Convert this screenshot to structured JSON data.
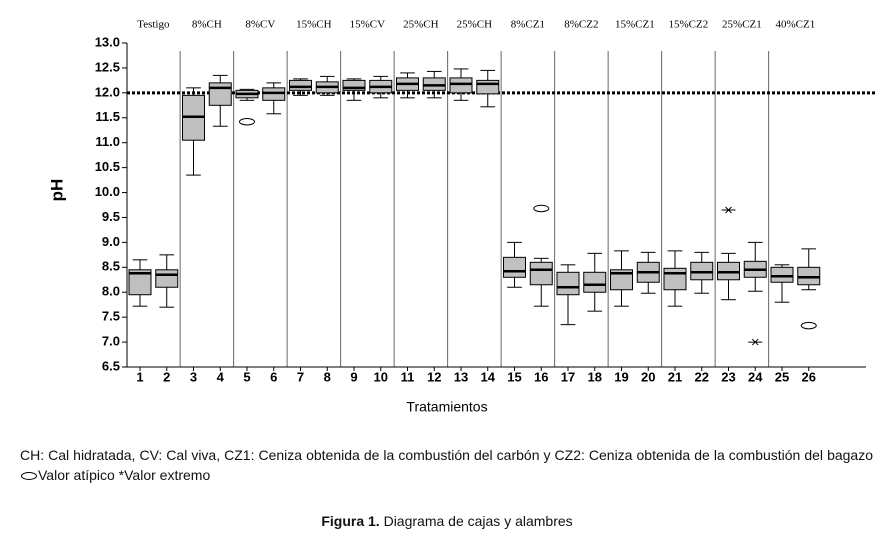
{
  "chart_data": {
    "type": "box",
    "y_label": "pH",
    "x_label": "Tratamientos",
    "categories": [
      "1",
      "2",
      "3",
      "4",
      "5",
      "6",
      "7",
      "8",
      "9",
      "10",
      "11",
      "12",
      "13",
      "14",
      "15",
      "16",
      "17",
      "18",
      "19",
      "20",
      "21",
      "22",
      "23",
      "24",
      "25",
      "26"
    ],
    "groups": [
      {
        "label": "Testigo",
        "categories": [
          "1",
          "2"
        ]
      },
      {
        "label": "8%CH",
        "categories": [
          "3",
          "4"
        ]
      },
      {
        "label": "8%CV",
        "categories": [
          "5",
          "6"
        ]
      },
      {
        "label": "15%CH",
        "categories": [
          "7",
          "8"
        ]
      },
      {
        "label": "15%CV",
        "categories": [
          "9",
          "10"
        ]
      },
      {
        "label": "25%CH",
        "categories": [
          "11",
          "12"
        ]
      },
      {
        "label": "25%CH",
        "categories": [
          "13",
          "14"
        ]
      },
      {
        "label": "8%CZ1",
        "categories": [
          "15",
          "16"
        ]
      },
      {
        "label": "8%CZ2",
        "categories": [
          "17",
          "18"
        ]
      },
      {
        "label": "15%CZ1",
        "categories": [
          "19",
          "20"
        ]
      },
      {
        "label": "15%CZ2",
        "categories": [
          "21",
          "22"
        ]
      },
      {
        "label": "25%CZ1",
        "categories": [
          "23",
          "24"
        ]
      },
      {
        "label": "40%CZ1",
        "categories": [
          "25",
          "26"
        ]
      }
    ],
    "boxes": [
      {
        "min": 7.72,
        "q1": 7.95,
        "median": 8.38,
        "q3": 8.45,
        "max": 8.65,
        "outliers": [],
        "extremes": []
      },
      {
        "min": 7.7,
        "q1": 8.1,
        "median": 8.35,
        "q3": 8.45,
        "max": 8.75,
        "outliers": [],
        "extremes": []
      },
      {
        "min": 10.35,
        "q1": 11.05,
        "median": 11.52,
        "q3": 11.95,
        "max": 12.1,
        "outliers": [],
        "extremes": []
      },
      {
        "min": 11.33,
        "q1": 11.75,
        "median": 12.1,
        "q3": 12.2,
        "max": 12.35,
        "outliers": [],
        "extremes": []
      },
      {
        "min": 11.85,
        "q1": 11.9,
        "median": 11.98,
        "q3": 12.05,
        "max": 12.07,
        "outliers": [
          11.42
        ],
        "extremes": []
      },
      {
        "min": 11.58,
        "q1": 11.85,
        "median": 12.0,
        "q3": 12.1,
        "max": 12.2,
        "outliers": [],
        "extremes": []
      },
      {
        "min": 11.95,
        "q1": 12.05,
        "median": 12.12,
        "q3": 12.25,
        "max": 12.28,
        "outliers": [],
        "extremes": []
      },
      {
        "min": 11.95,
        "q1": 12.0,
        "median": 12.12,
        "q3": 12.22,
        "max": 12.33,
        "outliers": [],
        "extremes": []
      },
      {
        "min": 11.85,
        "q1": 12.05,
        "median": 12.1,
        "q3": 12.25,
        "max": 12.28,
        "outliers": [],
        "extremes": []
      },
      {
        "min": 11.9,
        "q1": 12.0,
        "median": 12.12,
        "q3": 12.25,
        "max": 12.33,
        "outliers": [],
        "extremes": []
      },
      {
        "min": 11.9,
        "q1": 12.05,
        "median": 12.18,
        "q3": 12.3,
        "max": 12.4,
        "outliers": [],
        "extremes": []
      },
      {
        "min": 11.9,
        "q1": 12.05,
        "median": 12.15,
        "q3": 12.3,
        "max": 12.43,
        "outliers": [],
        "extremes": []
      },
      {
        "min": 11.85,
        "q1": 12.0,
        "median": 12.18,
        "q3": 12.3,
        "max": 12.48,
        "outliers": [],
        "extremes": []
      },
      {
        "min": 11.72,
        "q1": 11.98,
        "median": 12.18,
        "q3": 12.25,
        "max": 12.45,
        "outliers": [],
        "extremes": []
      },
      {
        "min": 8.1,
        "q1": 8.3,
        "median": 8.42,
        "q3": 8.7,
        "max": 9.0,
        "outliers": [],
        "extremes": []
      },
      {
        "min": 7.72,
        "q1": 8.15,
        "median": 8.45,
        "q3": 8.6,
        "max": 8.68,
        "outliers": [
          9.68
        ],
        "extremes": []
      },
      {
        "min": 7.35,
        "q1": 7.95,
        "median": 8.1,
        "q3": 8.4,
        "max": 8.55,
        "outliers": [],
        "extremes": []
      },
      {
        "min": 7.62,
        "q1": 8.0,
        "median": 8.15,
        "q3": 8.4,
        "max": 8.78,
        "outliers": [],
        "extremes": []
      },
      {
        "min": 7.72,
        "q1": 8.05,
        "median": 8.38,
        "q3": 8.45,
        "max": 8.83,
        "outliers": [],
        "extremes": []
      },
      {
        "min": 7.98,
        "q1": 8.2,
        "median": 8.4,
        "q3": 8.6,
        "max": 8.8,
        "outliers": [],
        "extremes": []
      },
      {
        "min": 7.72,
        "q1": 8.05,
        "median": 8.38,
        "q3": 8.48,
        "max": 8.83,
        "outliers": [],
        "extremes": []
      },
      {
        "min": 7.98,
        "q1": 8.25,
        "median": 8.4,
        "q3": 8.6,
        "max": 8.8,
        "outliers": [],
        "extremes": []
      },
      {
        "min": 7.85,
        "q1": 8.25,
        "median": 8.4,
        "q3": 8.6,
        "max": 8.78,
        "outliers": [],
        "extremes": [
          9.65
        ]
      },
      {
        "min": 8.02,
        "q1": 8.3,
        "median": 8.45,
        "q3": 8.62,
        "max": 9.0,
        "outliers": [],
        "extremes": [
          7.0
        ]
      },
      {
        "min": 7.8,
        "q1": 8.2,
        "median": 8.32,
        "q3": 8.5,
        "max": 8.55,
        "outliers": [],
        "extremes": []
      },
      {
        "min": 8.05,
        "q1": 8.15,
        "median": 8.3,
        "q3": 8.5,
        "max": 8.87,
        "outliers": [
          7.33
        ],
        "extremes": []
      }
    ],
    "box_color": "#c0c0c0",
    "reference_line": 12,
    "ylim": [
      6.5,
      13
    ],
    "yticks": [
      {
        "value": 6.5,
        "label": "6.5"
      },
      {
        "value": 7,
        "label": "7.0"
      },
      7.5,
      {
        "value": 8,
        "label": "8.0"
      },
      8.5,
      {
        "value": 9,
        "label": "9.0"
      },
      9.5,
      {
        "value": 10,
        "label": "10.0"
      },
      10.5,
      {
        "value": 11,
        "label": "11.0"
      },
      11.5,
      {
        "value": 12,
        "label": "12.0"
      },
      12.5,
      {
        "value": 13,
        "label": "13.0"
      }
    ]
  },
  "footnote": {
    "text": "CH: Cal hidratada, CV: Cal viva, CZ1: Ceniza obtenida de la combustión del carbón y CZ2: Ceniza obtenida de la combustión del bagazo",
    "outlier_label": "Valor atípico",
    "extreme_label": "*Valor extremo"
  },
  "caption": {
    "label": "Figura 1.",
    "text": "Diagrama de cajas y alambres"
  }
}
